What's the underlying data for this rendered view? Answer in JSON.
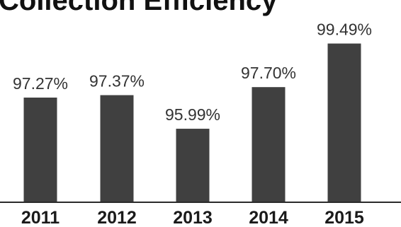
{
  "chart_data": {
    "type": "bar",
    "title": "Collection Efficiency",
    "categories": [
      "2011",
      "2012",
      "2013",
      "2014",
      "2015"
    ],
    "values": [
      97.27,
      97.37,
      95.99,
      97.7,
      99.49
    ],
    "value_labels": [
      "97.27%",
      "97.37%",
      "95.99%",
      "97.70%",
      "99.49%"
    ],
    "xlabel": "",
    "ylabel": "",
    "ylim": [
      93.0,
      100.0
    ],
    "grid": false,
    "legend": "none",
    "bar_color": "#404040",
    "axis_color": "#2b2b2b"
  }
}
